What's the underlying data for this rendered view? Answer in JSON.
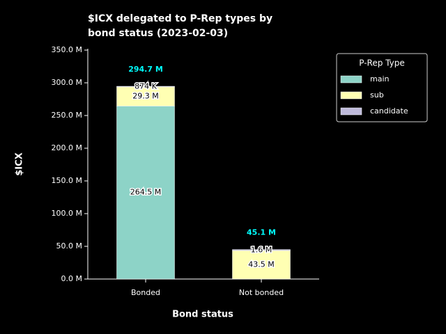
{
  "chart_data": {
    "type": "stacked_bar",
    "title": [
      "$ICX delegated to P-Rep types by",
      "bond status (2023-02-03)"
    ],
    "x_label": "Bond status",
    "y_label": "$ICX",
    "categories": [
      "Bonded",
      "Not bonded"
    ],
    "series": [
      {
        "name": "main",
        "color": "#8dd3c7",
        "values": [
          264500000,
          0
        ],
        "value_labels": [
          "264.5 M",
          null
        ]
      },
      {
        "name": "sub",
        "color": "#ffffb3",
        "values": [
          29300000,
          43500000
        ],
        "value_labels": [
          "29.3 M",
          "43.5 M"
        ]
      },
      {
        "name": "candidate",
        "color": "#bebada",
        "values": [
          874000,
          1600000
        ],
        "value_labels": [
          "874 K",
          "1.6 M"
        ]
      }
    ],
    "totals": [
      294700000,
      45100000
    ],
    "total_labels": [
      "294.7 M",
      "45.1 M"
    ],
    "ylim": [
      0,
      350000000
    ],
    "yticks": [
      {
        "value": 0,
        "label": "0.0 M"
      },
      {
        "value": 50000000,
        "label": "50.0 M"
      },
      {
        "value": 100000000,
        "label": "100.0 M"
      },
      {
        "value": 150000000,
        "label": "150.0 M"
      },
      {
        "value": 200000000,
        "label": "200.0 M"
      },
      {
        "value": 250000000,
        "label": "250.0 M"
      },
      {
        "value": 300000000,
        "label": "300.0 M"
      },
      {
        "value": 350000000,
        "label": "350.0 M"
      }
    ],
    "legend_title": "P-Rep Type",
    "legend_position": "outside-upper-right"
  }
}
